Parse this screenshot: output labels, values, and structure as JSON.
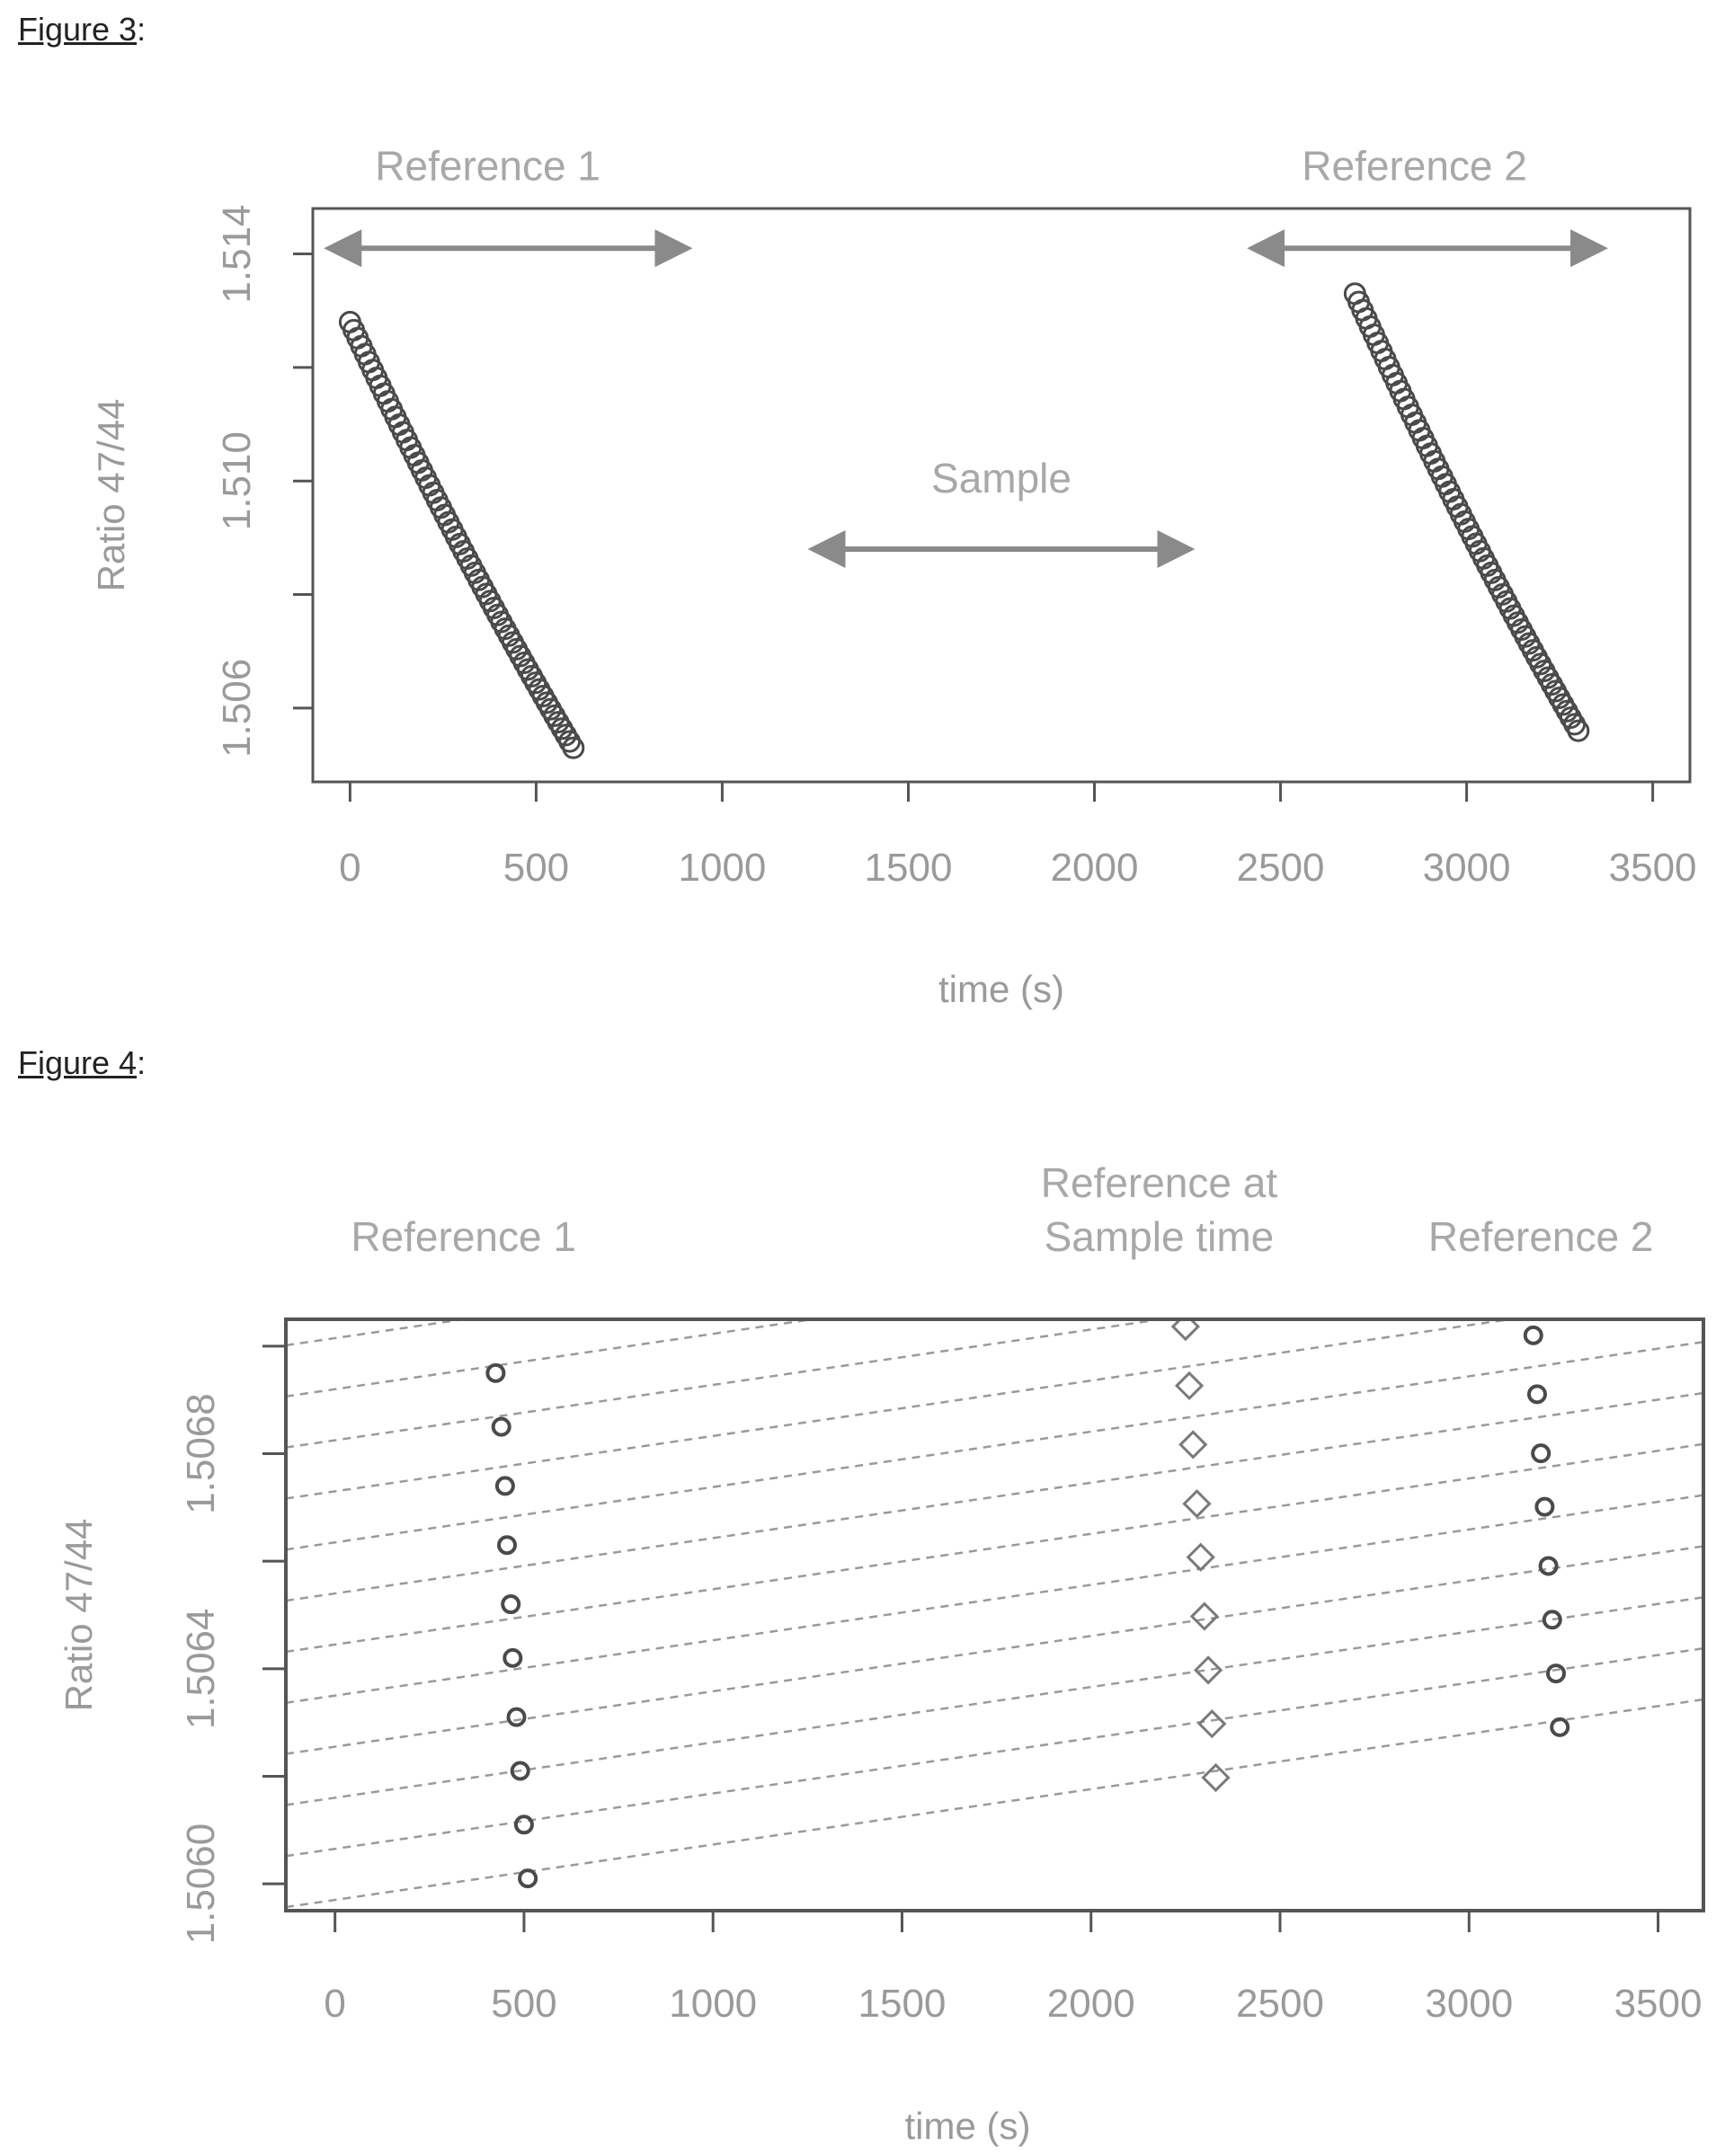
{
  "figures": [
    {
      "label": "Figure 3",
      "suffix": ":"
    },
    {
      "label": "Figure 4",
      "suffix": ":"
    }
  ],
  "chart_data": [
    {
      "type": "scatter",
      "xlabel": "time (s)",
      "ylabel": "Ratio 47/44",
      "xlim": [
        -100,
        3600
      ],
      "ylim": [
        1.5047,
        1.5148
      ],
      "xticks": [
        0,
        500,
        1000,
        1500,
        2000,
        2500,
        3000,
        3500
      ],
      "xtick_labels": [
        "0",
        "500",
        "1000",
        "1500",
        "2000",
        "2500",
        "3000",
        "3500"
      ],
      "yticks": [
        1.506,
        1.508,
        1.51,
        1.512,
        1.514
      ],
      "ytick_labels": [
        "1.506",
        "",
        "1.510",
        "",
        "1.514"
      ],
      "series": [
        {
          "x_start": 0,
          "x_end": 600,
          "y_start": 1.5128,
          "y_end": 1.5053,
          "points": 60
        },
        {
          "x_start": 2700,
          "x_end": 3300,
          "y_start": 1.5133,
          "y_end": 1.5056,
          "points": 60
        }
      ],
      "annotations": [
        {
          "text": "Reference 1",
          "x": 370,
          "x_from": -50,
          "x_to": 900,
          "arrow_y": 1.5141,
          "text_y": 1.5153
        },
        {
          "text": "Sample",
          "x": 1750,
          "x_from": 1250,
          "x_to": 2250,
          "arrow_y": 1.5088,
          "text_y": 1.5098
        },
        {
          "text": "Reference 2",
          "x": 2860,
          "x_from": 2430,
          "x_to": 3360,
          "arrow_y": 1.5141,
          "text_y": 1.5153
        }
      ]
    },
    {
      "type": "line",
      "xlabel": "time (s)",
      "ylabel": "Ratio 47/44",
      "xlim": [
        -130,
        3620
      ],
      "ylim": [
        1.50595,
        1.50705
      ],
      "xticks": [
        0,
        500,
        1000,
        1500,
        2000,
        2500,
        3000,
        3500
      ],
      "xtick_labels": [
        "0",
        "500",
        "1000",
        "1500",
        "2000",
        "2500",
        "3000",
        "3500"
      ],
      "yticks": [
        1.506,
        1.5062,
        1.5064,
        1.5066,
        1.5068,
        1.507
      ],
      "ytick_labels": [
        "1.5060",
        "",
        "1.5064",
        "",
        "1.5068",
        ""
      ],
      "line_slope_per_1000s": 0.000103,
      "line_intercepts": [
        1.50597,
        1.506065,
        1.50616,
        1.506255,
        1.50635,
        1.506445,
        1.50654,
        1.506635,
        1.50673,
        1.506825,
        1.50692,
        1.507015
      ],
      "marker_rows": [
        {
          "ref1_x": 425,
          "sample_x": 2240,
          "ref2_x": 3150,
          "y": 1.50695
        },
        {
          "ref1_x": 440,
          "sample_x": 2250,
          "ref2_x": 3160,
          "y": 1.50685
        },
        {
          "ref1_x": 450,
          "sample_x": 2260,
          "ref2_x": 3170,
          "y": 1.50674
        },
        {
          "ref1_x": 455,
          "sample_x": 2270,
          "ref2_x": 3180,
          "y": 1.50663
        },
        {
          "ref1_x": 465,
          "sample_x": 2280,
          "ref2_x": 3190,
          "y": 1.50652
        },
        {
          "ref1_x": 470,
          "sample_x": 2290,
          "ref2_x": 3200,
          "y": 1.50642
        },
        {
          "ref1_x": 480,
          "sample_x": 2300,
          "ref2_x": 3210,
          "y": 1.50631
        },
        {
          "ref1_x": 490,
          "sample_x": 2310,
          "ref2_x": 3220,
          "y": 1.50621
        },
        {
          "ref1_x": 500,
          "sample_x": 2320,
          "ref2_x": 3230,
          "y": 1.50611
        },
        {
          "ref1_x": 510,
          "sample_x": 2330,
          "ref2_x": 3240,
          "y": 1.50601
        }
      ],
      "annotations": [
        {
          "text": "Reference 1",
          "x": 340
        },
        {
          "text": "Reference at",
          "x": 2180
        },
        {
          "text": "Sample time",
          "x": 2180
        },
        {
          "text": "Reference 2",
          "x": 3190
        }
      ]
    }
  ]
}
